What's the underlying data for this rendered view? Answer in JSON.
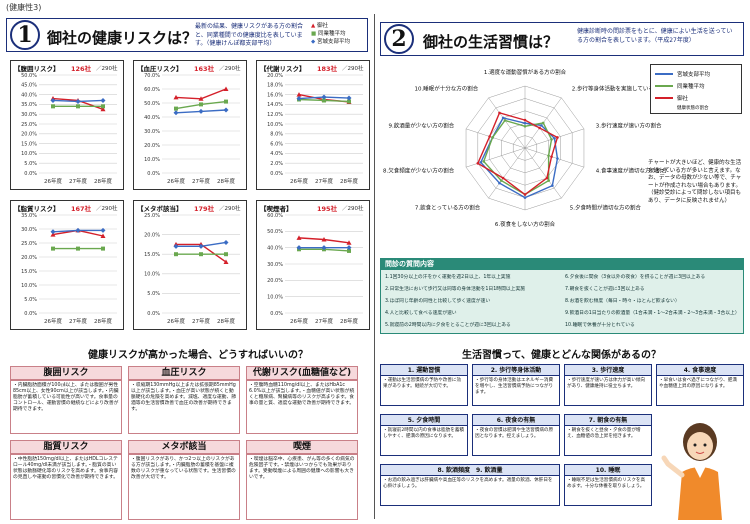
{
  "tag": "(健康性3)",
  "left": {
    "number": "1",
    "title": "御社の健康リスクは？",
    "desc": "最新の結果、健康リスクがある方の割合と、同業種間での健康度比を表しています。（健康けんぽ都支部平均）",
    "legend": [
      "御社",
      "同業種平均",
      "宮城支部平均"
    ],
    "charts": [
      {
        "title": "【腹囲リスク】",
        "count": "126社",
        "denom": "／290社"
      },
      {
        "title": "【血圧リスク】",
        "count": "163社",
        "denom": "／290社"
      },
      {
        "title": "【代謝リスク】",
        "count": "183社",
        "denom": "／290社"
      },
      {
        "title": "【脂質リスク】",
        "count": "167社",
        "denom": "／290社"
      },
      {
        "title": "【メタボ該当】",
        "count": "179社",
        "denom": "／290社"
      },
      {
        "title": "【喫煙者】",
        "count": "195社",
        "denom": "／290社"
      }
    ],
    "chart_data": [
      {
        "type": "line",
        "title": "【腹囲リスク】",
        "categories": [
          "26年度",
          "27年度",
          "28年度"
        ],
        "ylim": [
          0,
          50
        ],
        "yticks": [
          "50.0%",
          "45.0%",
          "40.0%",
          "35.0%",
          "30.0%",
          "25.0%",
          "20.0%",
          "15.0%",
          "10.0%",
          "5.0%",
          "0.0%"
        ],
        "series": [
          {
            "values": [
              38,
              37,
              32.5
            ],
            "color": "#d4202a"
          },
          {
            "values": [
              34,
              34,
              34
            ],
            "color": "#6aa84f"
          },
          {
            "values": [
              37,
              36.5,
              37
            ],
            "color": "#3b6cc4"
          }
        ]
      },
      {
        "type": "line",
        "title": "【血圧リスク】",
        "categories": [
          "26年度",
          "27年度",
          "28年度"
        ],
        "ylim": [
          0,
          70
        ],
        "yticks": [
          "70.0%",
          "60.0%",
          "50.0%",
          "40.0%",
          "30.0%",
          "20.0%",
          "10.0%",
          "0.0%"
        ],
        "series": [
          {
            "values": [
              54,
              53,
              60
            ],
            "color": "#d4202a"
          },
          {
            "values": [
              46,
              49,
              51
            ],
            "color": "#6aa84f"
          },
          {
            "values": [
              43,
              44,
              45
            ],
            "color": "#3b6cc4"
          }
        ]
      },
      {
        "type": "line",
        "title": "【代謝リスク】",
        "categories": [
          "26年度",
          "27年度",
          "28年度"
        ],
        "ylim": [
          0,
          20
        ],
        "yticks": [
          "20.0%",
          "18.0%",
          "16.0%",
          "14.0%",
          "12.0%",
          "10.0%",
          "8.0%",
          "6.0%",
          "4.0%",
          "2.0%",
          "0.0%"
        ],
        "series": [
          {
            "values": [
              16,
              15,
              14.5
            ],
            "color": "#d4202a"
          },
          {
            "values": [
              15,
              14.8,
              14.6
            ],
            "color": "#6aa84f"
          },
          {
            "values": [
              15.2,
              15.5,
              15.3
            ],
            "color": "#3b6cc4"
          }
        ]
      },
      {
        "type": "line",
        "title": "【脂質リスク】",
        "categories": [
          "26年度",
          "27年度",
          "28年度"
        ],
        "ylim": [
          0,
          35
        ],
        "yticks": [
          "35.0%",
          "30.0%",
          "25.0%",
          "20.0%",
          "15.0%",
          "10.0%",
          "5.0%",
          "0.0%"
        ],
        "series": [
          {
            "values": [
              28,
              29.5,
              27.5
            ],
            "color": "#d4202a"
          },
          {
            "values": [
              23,
              23,
              23
            ],
            "color": "#6aa84f"
          },
          {
            "values": [
              29,
              29.5,
              29.5
            ],
            "color": "#3b6cc4"
          }
        ]
      },
      {
        "type": "line",
        "title": "【メタボ該当】",
        "categories": [
          "26年度",
          "27年度",
          "28年度"
        ],
        "ylim": [
          0,
          25
        ],
        "yticks": [
          "25.0%",
          "20.0%",
          "15.0%",
          "10.0%",
          "5.0%",
          "0.0%"
        ],
        "series": [
          {
            "values": [
              17.5,
              17.5,
              13
            ],
            "color": "#d4202a"
          },
          {
            "values": [
              15,
              15,
              15
            ],
            "color": "#6aa84f"
          },
          {
            "values": [
              17,
              17,
              18
            ],
            "color": "#3b6cc4"
          }
        ]
      },
      {
        "type": "line",
        "title": "【喫煙者】",
        "categories": [
          "26年度",
          "27年度",
          "28年度"
        ],
        "ylim": [
          0,
          60
        ],
        "yticks": [
          "60.0%",
          "50.0%",
          "40.0%",
          "30.0%",
          "20.0%",
          "10.0%",
          "0.0%"
        ],
        "series": [
          {
            "values": [
              46,
              45,
              43
            ],
            "color": "#d4202a"
          },
          {
            "values": [
              39,
              39,
              38
            ],
            "color": "#6aa84f"
          },
          {
            "values": [
              40,
              40,
              40
            ],
            "color": "#3b6cc4"
          }
        ]
      }
    ],
    "section_title": "健康リスクが高かった場合、どうすればいいの？",
    "risks": [
      {
        "head": "腹囲リスク",
        "body": "・内臓脂肪面積が100㎠以上、または腹囲が男性85cm以上、女性90cm以上が該当します。・内臓脂肪が蓄積している可能性が高いです。食事量のコントロール、運動習慣の継続などにより改善が期待できます。"
      },
      {
        "head": "血圧リスク",
        "body": "・収縮期130mmHg以上または拡張期85mmHg以上が該当します。・血圧が高い状態が続くと動脈硬化の危険を高めます。減塩、適度な運動、節酒等の生活習慣改善で血圧の改善が期待できます。"
      },
      {
        "head": "代謝リスク(血糖値など)",
        "body": "・空腹時血糖110mg/dl以上、またはHbA1c 6.0%以上が該当します。・血糖値が高い状態が続くと糖尿病、腎臓病等のリスクが高まります。食事の量と質、適度な運動で改善が期待できます。"
      },
      {
        "head": "脂質リスク",
        "body": "・中性脂肪150mg/dl以上、またはHDLコレステロール40mg/dl未満が該当します。・脂質の高い状態は動脈硬化等のリスクを高めます。食事内容の見直しや運動の習慣化で改善が期待できます。"
      },
      {
        "head": "メタボ該当",
        "body": "・腹囲リスクがあり、かつ2つ以上のリスクがある方が該当します。・内臓脂肪の蓄積を基盤に複数のリスクが重なっている状態です。生活習慣の改善が大切です。"
      },
      {
        "head": "喫煙",
        "body": "・喫煙は脳卒中、心疾患、がん等の多くの病気の危険因子です。・禁煙はいつからでも効果があります。受動喫煙による周囲の健康への影響も大きいです。"
      }
    ]
  },
  "right": {
    "number": "2",
    "title": "御社の生活習慣は？",
    "desc": "健康診断時の問診票をもとに、健康によい生活を送っている方の割合を表しています。（平成27年度）",
    "radar_axes": [
      "1.適度な運動習慣がある方の割合",
      "2.歩行等身体活動を実施している方の割合",
      "3.歩行速度が速い方の割合",
      "4.食事速度が適切な方の割合",
      "5.夕食時間が適切な方の割合",
      "6.夜食をしない方の割合",
      "7.飲食とっている方の割合",
      "8.欠食頻度が少ない方の割合",
      "9.飲酒量が少ない方の割合",
      "10.睡眠が十分な方の割合"
    ],
    "legend": [
      "宮城支部平均",
      "同業種平均",
      "御社"
    ],
    "legend_note": "健康状態の割合",
    "chart_data": {
      "type": "radar",
      "axes": [
        "1",
        "2",
        "3",
        "4",
        "5",
        "6",
        "7",
        "8",
        "9",
        "10"
      ],
      "rlim": [
        0,
        100
      ],
      "series": [
        {
          "name": "宮城支部平均",
          "color": "#3b6cc4",
          "values": [
            40,
            45,
            50,
            55,
            75,
            80,
            70,
            75,
            55,
            60
          ]
        },
        {
          "name": "同業種平均",
          "color": "#6aa84f",
          "values": [
            35,
            50,
            45,
            40,
            65,
            75,
            65,
            70,
            55,
            55
          ]
        },
        {
          "name": "御社",
          "color": "#d4202a",
          "values": [
            45,
            40,
            55,
            45,
            60,
            75,
            60,
            80,
            60,
            70
          ]
        }
      ]
    },
    "note": "チャートが大きいほど、健康的な生活を送っている方が多いと言えます。なお、データの母数が少ない等で、チャートが作成されない場合もあります。（健診受診によって問診しない項目もあり、データに反映されません）",
    "habit_list_title": "問診の質問内容",
    "habit_list": [
      "1.1回30分以上の汗をかく運動を週2日以上、1年以上実施",
      "6.夕食後に間食（3食以外の夜食）を摂ることが週に3回以上ある",
      "2.日常生活において歩行又は同等の身体活動を1日1時間以上実施",
      "7.朝食を抜くことが週に3回以上ある",
      "3.ほぼ同じ年齢の同性と比較して歩く速度が速い",
      "8.お酒を飲む頻度（毎日・時々・ほとんど飲まない）",
      "4.人と比較して食べる速度が速い",
      "9.飲酒日の1日当たりの飲酒量（1合未満・1〜2合未満・2〜3合未満・3合以上）",
      "5.就寝前の2時間以内に夕食をとることが週に3回以上ある",
      "10.睡眠で休養が十分とれている"
    ],
    "section_title": "生活習慣って、健康とどんな関係があるの？",
    "habits": [
      {
        "head": "1. 運動習慣",
        "body": "・運動は生活習慣病の予防や改善に効果があります。継続が大切です。"
      },
      {
        "head": "2. 歩行等身体活動",
        "body": "・歩行等の身体活動はエネルギー消費を増やし、生活習慣病予防につながります。"
      },
      {
        "head": "3. 歩行速度",
        "body": "・歩行速度が速い方は体力が高い傾向があり、健康維持に役立ちます。"
      },
      {
        "head": "4. 食事速度",
        "body": "・早食いは食べ過ぎにつながり、肥満や血糖値上昇の原因になります。"
      },
      {
        "head": "5. 夕食時間",
        "body": "・就寝前2時間以内の食事は脂肪を蓄積しやすく、肥満の原因になります。"
      },
      {
        "head": "6. 夜食の有無",
        "body": "・夜食の習慣は肥満や生活習慣病の原因となります。控えましょう。"
      },
      {
        "head": "7. 朝食の有無",
        "body": "・朝食を抜くと昼食・夕食の量が増え、血糖値の急上昇を招きます。"
      },
      {
        "head": "8. 飲酒頻度　9. 飲酒量",
        "body": "・お酒の飲み過ぎは肝臓病や高血圧等のリスクを高めます。適量の飲酒、休肝日を心掛けましょう。"
      },
      {
        "head": "10. 睡眠",
        "body": "・睡眠不足は生活習慣病のリスクを高めます。十分な休養を取りましょう。"
      }
    ]
  }
}
